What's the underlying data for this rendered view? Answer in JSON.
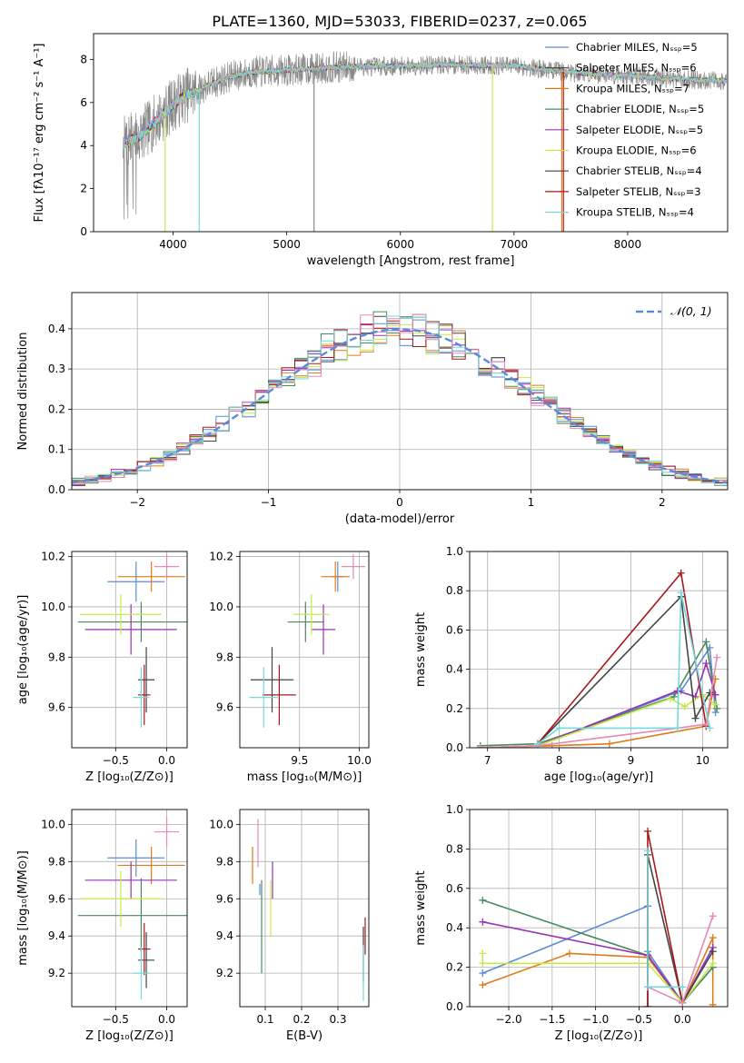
{
  "figure": {
    "title": "PLATE=1360, MJD=53033, FIBERID=0237, z=0.065"
  },
  "colors": {
    "c1": "#5b8bd8",
    "c2": "#e07b1a",
    "c3": "#4a8a5e",
    "c4": "#9b30b5",
    "c5": "#c8e84a",
    "c6": "#444444",
    "c7": "#a81818",
    "c8": "#e489b8",
    "c9": "#74d8dc",
    "data_gray": "#8a8a8a"
  },
  "chart_data": [
    {
      "id": "spectrum",
      "type": "line",
      "xlabel": "wavelength [Angstrom, rest frame]",
      "ylabel": "Flux [fλ10⁻¹⁷ erg cm⁻² s⁻¹ A⁻¹]",
      "xlim": [
        3300,
        8880
      ],
      "ylim": [
        0,
        9.2
      ],
      "xticks": [
        4000,
        5000,
        6000,
        7000,
        8000
      ],
      "yticks": [
        0,
        2,
        4,
        6,
        8
      ],
      "grid": false,
      "legend_position": "upper right",
      "legend": [
        {
          "text": "Chabrier MILES, Nₛₛₚ=5",
          "color": "c1"
        },
        {
          "text": "Salpeter MILES, Nₛₛₚ=6",
          "color": "c6"
        },
        {
          "text": "Kroupa MILES, Nₛₛₚ=7",
          "color": "c2"
        },
        {
          "text": "Chabrier ELODIE, Nₛₛₚ=5",
          "color": "c3"
        },
        {
          "text": "Salpeter ELODIE, Nₛₛₚ=5",
          "color": "c4"
        },
        {
          "text": "Kroupa ELODIE, Nₛₛₚ=6",
          "color": "c5"
        },
        {
          "text": "Chabrier STELIB, Nₛₛₚ=4",
          "color": "c6"
        },
        {
          "text": "Salpeter STELIB, Nₛₛₚ=3",
          "color": "c7"
        },
        {
          "text": "Kroupa STELIB, Nₛₛₚ=4",
          "color": "c9"
        }
      ],
      "continuum": [
        [
          3560,
          4.1
        ],
        [
          3700,
          4.4
        ],
        [
          3800,
          4.9
        ],
        [
          3900,
          5.4
        ],
        [
          4000,
          5.9
        ],
        [
          4100,
          6.3
        ],
        [
          4200,
          6.5
        ],
        [
          4300,
          6.8
        ],
        [
          4500,
          7.2
        ],
        [
          4700,
          7.4
        ],
        [
          5000,
          7.5
        ],
        [
          5500,
          7.65
        ],
        [
          6000,
          7.7
        ],
        [
          6500,
          7.75
        ],
        [
          7000,
          7.7
        ],
        [
          7500,
          7.4
        ],
        [
          8000,
          7.25
        ],
        [
          8400,
          7.1
        ],
        [
          8880,
          7.0
        ]
      ],
      "drops": [
        3930,
        4230,
        5240,
        6810,
        7420,
        7435
      ]
    },
    {
      "id": "residuals",
      "type": "histogram",
      "xlabel": "(data-model)/error",
      "ylabel": "Normed distribution",
      "xlim": [
        -2.5,
        2.5
      ],
      "ylim": [
        0,
        0.49
      ],
      "xticks": [
        -2,
        -1,
        0,
        1,
        2
      ],
      "yticks": [
        0.0,
        0.1,
        0.2,
        0.3,
        0.4
      ],
      "grid": true,
      "legend_position": "upper right",
      "legend_label": "𝒩(0, 1)",
      "bin_width": 0.1
    },
    {
      "id": "age_vs_Z",
      "type": "errorbar",
      "xlabel": "Z [log₁₀(Z/Z⊙)]",
      "ylabel": "age  [log₁₀(age/yr)]",
      "xlim": [
        -0.93,
        0.2
      ],
      "ylim": [
        9.44,
        10.22
      ],
      "xticks": [
        -0.5,
        0.0
      ],
      "yticks": [
        9.6,
        9.8,
        10.0,
        10.2
      ],
      "grid": true,
      "points": [
        {
          "c": "c1",
          "x": -0.3,
          "xe": 0.28,
          "y": 10.1,
          "ye": 0.08
        },
        {
          "c": "c2",
          "x": -0.15,
          "xe": 0.33,
          "y": 10.12,
          "ye": 0.06
        },
        {
          "c": "c3",
          "x": -0.25,
          "xe": 0.62,
          "y": 9.94,
          "ye": 0.08
        },
        {
          "c": "c4",
          "x": -0.35,
          "xe": 0.45,
          "y": 9.91,
          "ye": 0.1
        },
        {
          "c": "c5",
          "x": -0.45,
          "xe": 0.4,
          "y": 9.97,
          "ye": 0.08
        },
        {
          "c": "c6",
          "x": -0.2,
          "xe": 0.08,
          "y": 9.71,
          "ye": 0.13
        },
        {
          "c": "c7",
          "x": -0.22,
          "xe": 0.06,
          "y": 9.65,
          "ye": 0.12
        },
        {
          "c": "c8",
          "x": 0.0,
          "xe": 0.12,
          "y": 10.16,
          "ye": 0.05
        },
        {
          "c": "c9",
          "x": -0.25,
          "xe": 0.08,
          "y": 9.64,
          "ye": 0.12
        }
      ]
    },
    {
      "id": "age_vs_mass",
      "type": "errorbar",
      "xlabel": "mass [log₁₀(M/M⊙)]",
      "ylabel": "",
      "xlim": [
        9.0,
        10.08
      ],
      "ylim": [
        9.44,
        10.22
      ],
      "xticks": [
        9.5,
        10.0
      ],
      "yticks": [
        9.6,
        9.8,
        10.0,
        10.2
      ],
      "grid": true,
      "points": [
        {
          "c": "c1",
          "x": 9.82,
          "xe": 0.05,
          "y": 10.12,
          "ye": 0.06
        },
        {
          "c": "c2",
          "x": 9.8,
          "xe": 0.12,
          "y": 10.12,
          "ye": 0.06
        },
        {
          "c": "c3",
          "x": 9.55,
          "xe": 0.15,
          "y": 9.94,
          "ye": 0.08
        },
        {
          "c": "c4",
          "x": 9.7,
          "xe": 0.1,
          "y": 9.91,
          "ye": 0.1
        },
        {
          "c": "c5",
          "x": 9.6,
          "xe": 0.15,
          "y": 9.97,
          "ye": 0.08
        },
        {
          "c": "c6",
          "x": 9.27,
          "xe": 0.18,
          "y": 9.71,
          "ye": 0.13
        },
        {
          "c": "c7",
          "x": 9.33,
          "xe": 0.14,
          "y": 9.65,
          "ye": 0.12
        },
        {
          "c": "c8",
          "x": 9.95,
          "xe": 0.1,
          "y": 10.16,
          "ye": 0.05
        },
        {
          "c": "c9",
          "x": 9.2,
          "xe": 0.12,
          "y": 9.64,
          "ye": 0.12
        }
      ]
    },
    {
      "id": "mass_weight_vs_age",
      "type": "line",
      "xlabel": "age  [log₁₀(age/yr)]",
      "ylabel": "mass weight",
      "xlim": [
        6.75,
        10.35
      ],
      "ylim": [
        0,
        1.0
      ],
      "xticks": [
        7,
        8,
        9,
        10
      ],
      "yticks": [
        0.0,
        0.2,
        0.4,
        0.6,
        0.8,
        1.0
      ],
      "grid": true,
      "series": [
        {
          "c": "c1",
          "x": [
            6.9,
            7.7,
            9.7,
            10.1,
            10.18
          ],
          "y": [
            0.0,
            0.01,
            0.29,
            0.51,
            0.18
          ]
        },
        {
          "c": "c2",
          "x": [
            6.9,
            7.9,
            8.7,
            10.05,
            10.18
          ],
          "y": [
            0.0,
            0.01,
            0.02,
            0.11,
            0.35
          ]
        },
        {
          "c": "c3",
          "x": [
            6.9,
            7.7,
            9.6,
            10.05,
            10.2
          ],
          "y": [
            0.01,
            0.02,
            0.26,
            0.54,
            0.2
          ]
        },
        {
          "c": "c4",
          "x": [
            6.9,
            7.7,
            9.65,
            9.9,
            10.05,
            10.18
          ],
          "y": [
            0.0,
            0.01,
            0.29,
            0.26,
            0.43,
            0.27
          ]
        },
        {
          "c": "c5",
          "x": [
            6.9,
            7.7,
            9.55,
            9.75,
            10.0,
            10.18
          ],
          "y": [
            0.0,
            0.01,
            0.25,
            0.21,
            0.27,
            0.22
          ]
        },
        {
          "c": "c6",
          "x": [
            7.7,
            9.7,
            9.9,
            10.1
          ],
          "y": [
            0.02,
            0.77,
            0.15,
            0.28
          ]
        },
        {
          "c": "c7",
          "x": [
            7.7,
            9.7,
            10.05
          ],
          "y": [
            0.02,
            0.89,
            0.11
          ]
        },
        {
          "c": "c8",
          "x": [
            6.9,
            7.7,
            9.65,
            10.05,
            10.2
          ],
          "y": [
            0.0,
            0.01,
            0.1,
            0.12,
            0.46
          ]
        },
        {
          "c": "c9",
          "x": [
            7.7,
            8.0,
            9.65,
            9.7,
            10.1
          ],
          "y": [
            0.02,
            0.1,
            0.1,
            0.79,
            0.1
          ]
        }
      ]
    },
    {
      "id": "mass_vs_Z",
      "type": "errorbar",
      "xlabel": "Z [log₁₀(Z/Z⊙)]",
      "ylabel": "mass [log₁₀(M/M⊙)]",
      "xlim": [
        -0.93,
        0.2
      ],
      "ylim": [
        9.02,
        10.08
      ],
      "xticks": [
        -0.5,
        0.0
      ],
      "yticks": [
        9.2,
        9.4,
        9.6,
        9.8,
        10.0
      ],
      "grid": true,
      "points": [
        {
          "c": "c1",
          "x": -0.3,
          "xe": 0.28,
          "y": 9.82,
          "ye": 0.1
        },
        {
          "c": "c2",
          "x": -0.15,
          "xe": 0.33,
          "y": 9.78,
          "ye": 0.1
        },
        {
          "c": "c3",
          "x": -0.25,
          "xe": 0.62,
          "y": 9.51,
          "ye": 0.2
        },
        {
          "c": "c4",
          "x": -0.35,
          "xe": 0.45,
          "y": 9.7,
          "ye": 0.1
        },
        {
          "c": "c5",
          "x": -0.45,
          "xe": 0.4,
          "y": 9.6,
          "ye": 0.15
        },
        {
          "c": "c6",
          "x": -0.2,
          "xe": 0.08,
          "y": 9.27,
          "ye": 0.15
        },
        {
          "c": "c7",
          "x": -0.22,
          "xe": 0.06,
          "y": 9.33,
          "ye": 0.14
        },
        {
          "c": "c8",
          "x": 0.0,
          "xe": 0.12,
          "y": 9.96,
          "ye": 0.08
        },
        {
          "c": "c9",
          "x": -0.25,
          "xe": 0.08,
          "y": 9.2,
          "ye": 0.14
        }
      ]
    },
    {
      "id": "mass_vs_ebv",
      "type": "errorbar",
      "xlabel": "E(B-V)",
      "ylabel": "",
      "xlim": [
        0.03,
        0.385
      ],
      "ylim": [
        9.02,
        10.08
      ],
      "xticks": [
        0.1,
        0.2,
        0.3
      ],
      "yticks": [
        9.2,
        9.4,
        9.6,
        9.8,
        10.0
      ],
      "grid": true,
      "points": [
        {
          "c": "c1",
          "x": 0.085,
          "xe": 0,
          "y": 9.65,
          "ye": 0.03
        },
        {
          "c": "c2",
          "x": 0.065,
          "xe": 0,
          "y": 9.78,
          "ye": 0.1
        },
        {
          "c": "c3",
          "x": 0.09,
          "xe": 0,
          "y": 9.45,
          "ye": 0.25
        },
        {
          "c": "c4",
          "x": 0.12,
          "xe": 0,
          "y": 9.7,
          "ye": 0.1
        },
        {
          "c": "c5",
          "x": 0.115,
          "xe": 0,
          "y": 9.55,
          "ye": 0.15
        },
        {
          "c": "c6",
          "x": 0.37,
          "xe": 0,
          "y": 9.3,
          "ye": 0.15
        },
        {
          "c": "c7",
          "x": 0.375,
          "xe": 0,
          "y": 9.4,
          "ye": 0.1
        },
        {
          "c": "c8",
          "x": 0.08,
          "xe": 0,
          "y": 9.9,
          "ye": 0.13
        },
        {
          "c": "c9",
          "x": 0.37,
          "xe": 0,
          "y": 9.2,
          "ye": 0.15
        }
      ]
    },
    {
      "id": "mass_weight_vs_Z",
      "type": "line",
      "xlabel": "Z [log₁₀(Z/Z⊙)]",
      "ylabel": "mass weight",
      "xlim": [
        -2.45,
        0.52
      ],
      "ylim": [
        0,
        1.0
      ],
      "xticks": [
        -2.0,
        -1.5,
        -1.0,
        -0.5,
        0.0
      ],
      "yticks": [
        0.0,
        0.2,
        0.4,
        0.6,
        0.8,
        1.0
      ],
      "grid": true,
      "series": [
        {
          "c": "c1",
          "x": [
            -2.3,
            -0.4,
            -0.4,
            0.0,
            0.35
          ],
          "y": [
            0.17,
            0.51,
            0.28,
            0.02,
            0.2
          ]
        },
        {
          "c": "c2",
          "x": [
            -2.3,
            -1.3,
            -0.4,
            0.0,
            0.35,
            0.35
          ],
          "y": [
            0.11,
            0.27,
            0.25,
            0.02,
            0.35,
            0.01
          ]
        },
        {
          "c": "c3",
          "x": [
            -2.3,
            -0.4,
            0.0,
            0.35
          ],
          "y": [
            0.54,
            0.26,
            0.02,
            0.2
          ]
        },
        {
          "c": "c4",
          "x": [
            -2.3,
            -0.4,
            0.0,
            0.35
          ],
          "y": [
            0.43,
            0.26,
            0.02,
            0.3
          ]
        },
        {
          "c": "c5",
          "x": [
            -2.3,
            -2.3,
            -0.4,
            0.0,
            0.35
          ],
          "y": [
            0.27,
            0.22,
            0.22,
            0.02,
            0.22
          ]
        },
        {
          "c": "c6",
          "x": [
            -0.4,
            -0.4,
            0.0,
            0.35
          ],
          "y": [
            0.0,
            0.77,
            0.02,
            0.28
          ]
        },
        {
          "c": "c7",
          "x": [
            -0.4,
            -0.4,
            0.0
          ],
          "y": [
            0.0,
            0.89,
            0.02
          ]
        },
        {
          "c": "c8",
          "x": [
            -0.4,
            0.0,
            0.35
          ],
          "y": [
            0.1,
            0.02,
            0.46
          ]
        },
        {
          "c": "c9",
          "x": [
            -0.4,
            -0.4,
            0.0
          ],
          "y": [
            0.79,
            0.1,
            0.1
          ]
        }
      ]
    }
  ]
}
